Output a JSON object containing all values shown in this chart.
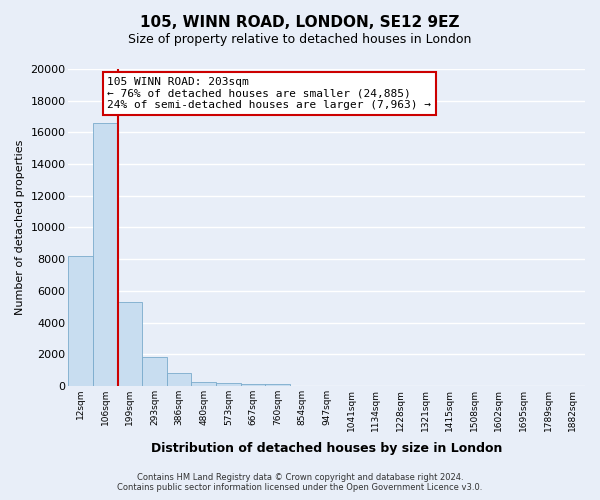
{
  "title": "105, WINN ROAD, LONDON, SE12 9EZ",
  "subtitle": "Size of property relative to detached houses in London",
  "xlabel": "Distribution of detached houses by size in London",
  "ylabel": "Number of detached properties",
  "bar_labels": [
    "12sqm",
    "106sqm",
    "199sqm",
    "293sqm",
    "386sqm",
    "480sqm",
    "573sqm",
    "667sqm",
    "760sqm",
    "854sqm",
    "947sqm",
    "1041sqm",
    "1134sqm",
    "1228sqm",
    "1321sqm",
    "1415sqm",
    "1508sqm",
    "1602sqm",
    "1695sqm",
    "1789sqm",
    "1882sqm"
  ],
  "bar_values": [
    8200,
    16600,
    5300,
    1850,
    800,
    280,
    200,
    150,
    100,
    0,
    0,
    0,
    0,
    0,
    0,
    0,
    0,
    0,
    0,
    0,
    0
  ],
  "bar_color": "#c8ddf0",
  "bar_edge_color": "#7aabcc",
  "ylim": [
    0,
    20000
  ],
  "yticks": [
    0,
    2000,
    4000,
    6000,
    8000,
    10000,
    12000,
    14000,
    16000,
    18000,
    20000
  ],
  "property_line_color": "#cc0000",
  "annotation_title": "105 WINN ROAD: 203sqm",
  "annotation_line1": "← 76% of detached houses are smaller (24,885)",
  "annotation_line2": "24% of semi-detached houses are larger (7,963) →",
  "annotation_box_facecolor": "#ffffff",
  "annotation_box_edgecolor": "#cc0000",
  "footer_line1": "Contains HM Land Registry data © Crown copyright and database right 2024.",
  "footer_line2": "Contains public sector information licensed under the Open Government Licence v3.0.",
  "background_color": "#e8eef8",
  "grid_color": "#ffffff",
  "grid_linewidth": 1.0
}
